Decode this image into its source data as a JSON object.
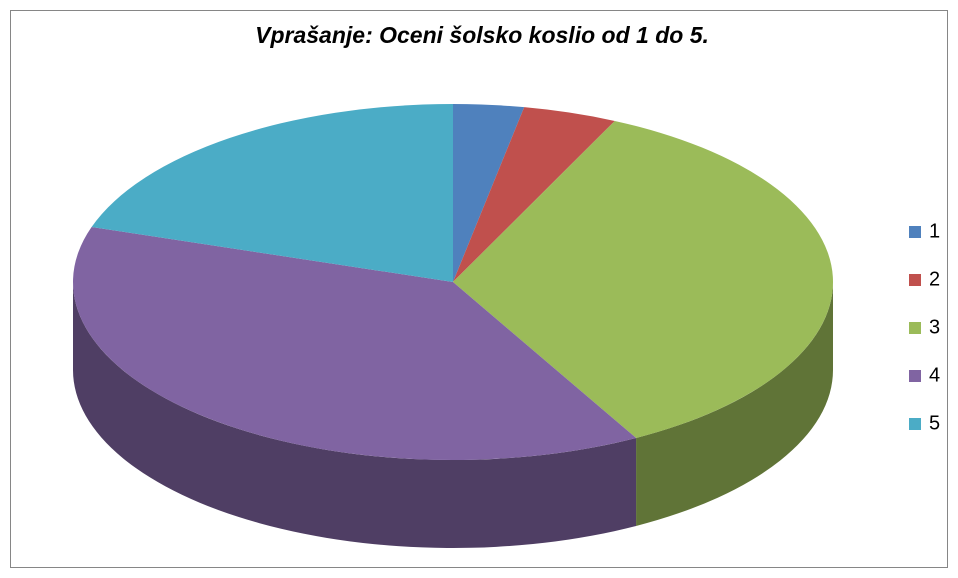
{
  "chart_data": {
    "type": "pie",
    "title": "Vprašanje: Oceni šolsko koslio od 1 do 5.",
    "categories": [
      "1",
      "2",
      "3",
      "4",
      "5"
    ],
    "values": [
      3,
      4,
      35,
      38,
      20
    ],
    "colors": [
      "#4f81bd",
      "#c0504d",
      "#9bbb59",
      "#8064a2",
      "#4bacc6"
    ],
    "legend": "right"
  }
}
